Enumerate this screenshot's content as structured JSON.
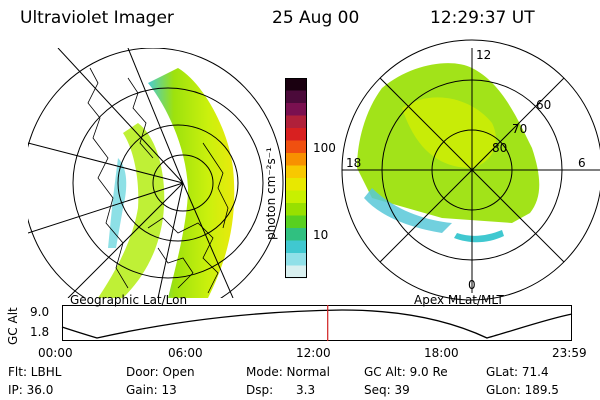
{
  "header": {
    "instrument": "Ultraviolet Imager",
    "date": "25 Aug 00",
    "time": "12:29:37 UT"
  },
  "left_panel": {
    "label": "Geographic Lat/Lon"
  },
  "colorbar": {
    "unit_label": "photon cm⁻²s⁻¹",
    "ticks": [
      "100",
      "10"
    ],
    "colors": [
      "#1a0010",
      "#4b0a3a",
      "#7a1050",
      "#b0203a",
      "#d82020",
      "#f05010",
      "#f89000",
      "#f8c800",
      "#e8e800",
      "#c8f000",
      "#98e000",
      "#58d020",
      "#30c080",
      "#40c8d0",
      "#90e0e8",
      "#d8f0f0"
    ]
  },
  "right_panel": {
    "label": "Apex MLat/MLT",
    "mlt_labels": [
      "12",
      "18",
      "6",
      "0"
    ],
    "mlat_labels": [
      "60",
      "70",
      "80"
    ]
  },
  "altitude_plot": {
    "ylabel": "GC Alt",
    "yticks": [
      "9.0",
      "1.8"
    ],
    "xticks": [
      "00:00",
      "06:00",
      "12:00",
      "18:00",
      "23:59"
    ],
    "marker_color": "#d02020",
    "marker_time_fraction": 0.521
  },
  "info": {
    "row1": [
      {
        "key": "filter",
        "text": "Flt: LBHL"
      },
      {
        "key": "door",
        "text": "Door: Open"
      },
      {
        "key": "mode",
        "text": "Mode: Normal"
      },
      {
        "key": "gcalt",
        "text": "GC Alt: 9.0 Re"
      },
      {
        "key": "glat",
        "text": "GLat:  71.4"
      }
    ],
    "row2": [
      {
        "key": "ip",
        "text": "IP: 36.0"
      },
      {
        "key": "gain",
        "text": "Gain: 13"
      },
      {
        "key": "dsp",
        "text": "Dsp:      3.3"
      },
      {
        "key": "seq",
        "text": "Seq: 39"
      },
      {
        "key": "glon",
        "text": "GLon: 189.5"
      }
    ]
  }
}
